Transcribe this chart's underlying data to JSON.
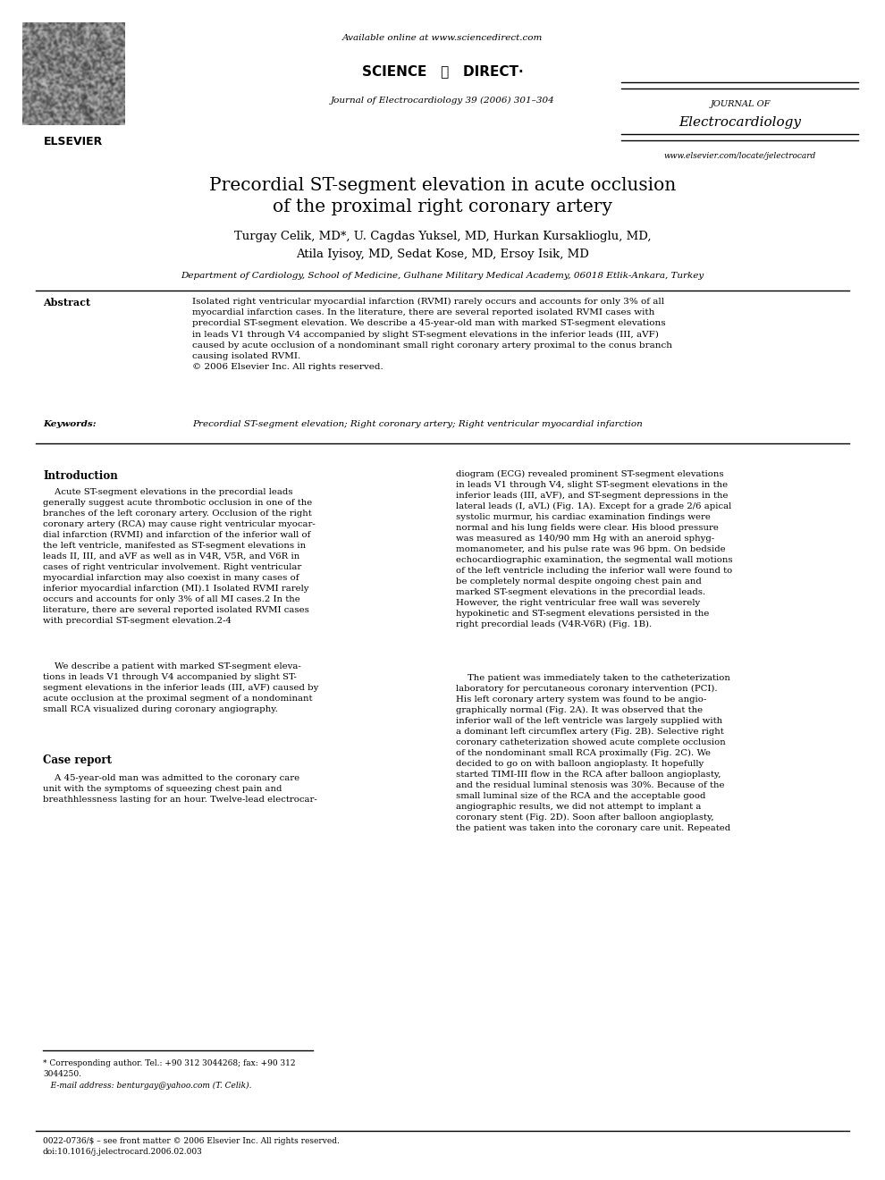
{
  "bg_color": "#ffffff",
  "page_width": 9.9,
  "page_height": 13.2,
  "header": {
    "available_online": "Available online at www.sciencedirect.com",
    "journal_name_line1": "JOURNAL OF",
    "journal_name_line2": "Electrocardiology",
    "journal_ref": "Journal of Electrocardiology 39 (2006) 301–304",
    "website": "www.elsevier.com/locate/jelectrocard"
  },
  "title_line1": "Precordial ST-segment elevation in acute occlusion",
  "title_line2": "of the proximal right coronary artery",
  "authors_line1": "Turgay Celik, MD*, U. Cagdas Yuksel, MD, Hurkan Kursaklioglu, MD,",
  "authors_line2": "Atila Iyisoy, MD, Sedat Kose, MD, Ersoy Isik, MD",
  "affiliation": "Department of Cardiology, School of Medicine, Gulhane Military Medical Academy, 06018 Etlik-Ankara, Turkey",
  "abstract_label": "Abstract",
  "abstract_text": "Isolated right ventricular myocardial infarction (RVMI) rarely occurs and accounts for only 3% of all\nmyocardial infarction cases. In the literature, there are several reported isolated RVMI cases with\nprecordial ST-segment elevation. We describe a 45-year-old man with marked ST-segment elevations\nin leads V1 through V4 accompanied by slight ST-segment elevations in the inferior leads (III, aVF)\ncaused by acute occlusion of a nondominant small right coronary artery proximal to the conus branch\ncausing isolated RVMI.\n© 2006 Elsevier Inc. All rights reserved.",
  "keywords_label": "Keywords:",
  "keywords_text": "Precordial ST-segment elevation; Right coronary artery; Right ventricular myocardial infarction",
  "intro_heading": "Introduction",
  "intro_col1_para1": "    Acute ST-segment elevations in the precordial leads\ngenerally suggest acute thrombotic occlusion in one of the\nbranches of the left coronary artery. Occlusion of the right\ncoronary artery (RCA) may cause right ventricular myocar-\ndial infarction (RVMI) and infarction of the inferior wall of\nthe left ventricle, manifested as ST-segment elevations in\nleads II, III, and aVF as well as in V4R, V5R, and V6R in\ncases of right ventricular involvement. Right ventricular\nmyocardial infarction may also coexist in many cases of\ninferior myocardial infarction (MI).1 Isolated RVMI rarely\noccurs and accounts for only 3% of all MI cases.2 In the\nliterature, there are several reported isolated RVMI cases\nwith precordial ST-segment elevation.2-4",
  "intro_col1_para2": "    We describe a patient with marked ST-segment eleva-\ntions in leads V1 through V4 accompanied by slight ST-\nsegment elevations in the inferior leads (III, aVF) caused by\nacute occlusion at the proximal segment of a nondominant\nsmall RCA visualized during coronary angiography.",
  "case_heading": "Case report",
  "case_col1": "    A 45-year-old man was admitted to the coronary care\nunit with the symptoms of squeezing chest pain and\nbreathhlessness lasting for an hour. Twelve-lead electrocar-",
  "intro_col2_para1": "diogram (ECG) revealed prominent ST-segment elevations\nin leads V1 through V4, slight ST-segment elevations in the\ninferior leads (III, aVF), and ST-segment depressions in the\nlateral leads (I, aVL) (Fig. 1A). Except for a grade 2/6 apical\nsystolic murmur, his cardiac examination findings were\nnormal and his lung fields were clear. His blood pressure\nwas measured as 140/90 mm Hg with an aneroid sphyg-\nmomanometer, and his pulse rate was 96 bpm. On bedside\nechocardiographic examination, the segmental wall motions\nof the left ventricle including the inferior wall were found to\nbe completely normal despite ongoing chest pain and\nmarked ST-segment elevations in the precordial leads.\nHowever, the right ventricular free wall was severely\nhypokinetic and ST-segment elevations persisted in the\nright precordial leads (V4R-V6R) (Fig. 1B).",
  "intro_col2_para2": "    The patient was immediately taken to the catheterization\nlaboratory for percutaneous coronary intervention (PCI).\nHis left coronary artery system was found to be angio-\ngraphically normal (Fig. 2A). It was observed that the\ninferior wall of the left ventricle was largely supplied with\na dominant left circumflex artery (Fig. 2B). Selective right\ncoronary catheterization showed acute complete occlusion\nof the nondominant small RCA proximally (Fig. 2C). We\ndecided to go on with balloon angioplasty. It hopefully\nstarted TIMI-III flow in the RCA after balloon angioplasty,\nand the residual luminal stenosis was 30%. Because of the\nsmall luminal size of the RCA and the acceptable good\nangiographic results, we did not attempt to implant a\ncoronary stent (Fig. 2D). Soon after balloon angioplasty,\nthe patient was taken into the coronary care unit. Repeated",
  "footnote1": "* Corresponding author. Tel.: +90 312 3044268; fax: +90 312\n3044250.",
  "footnote2": "   E-mail address: benturgay@yahoo.com (T. Celik).",
  "footnote3": "0022-0736/$ – see front matter © 2006 Elsevier Inc. All rights reserved.\ndoi:10.1016/j.jelectrocard.2006.02.003"
}
